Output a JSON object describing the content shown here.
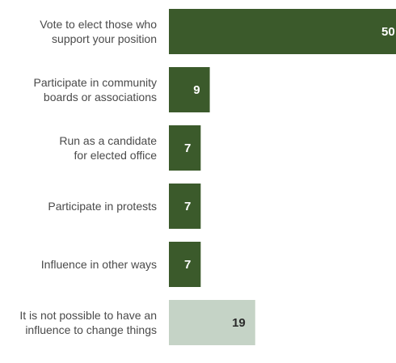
{
  "chart_data": {
    "type": "bar",
    "orientation": "horizontal",
    "categories": [
      [
        "Vote to elect those who",
        "support your position"
      ],
      [
        "Participate in community",
        "boards or associations"
      ],
      [
        "Run as a candidate",
        "for elected office"
      ],
      [
        "Participate in protests"
      ],
      [
        "Influence in other ways"
      ],
      [
        "It is not possible to have an",
        "influence to change things"
      ]
    ],
    "values": [
      50,
      9,
      7,
      7,
      7,
      19
    ],
    "bar_colors": [
      "#3b5a2b",
      "#3b5a2b",
      "#3b5a2b",
      "#3b5a2b",
      "#3b5a2b",
      "#c5d3c6"
    ],
    "label_colors": [
      "#ffffff",
      "#ffffff",
      "#ffffff",
      "#ffffff",
      "#ffffff",
      "#2b2b2b"
    ],
    "title": "",
    "xlabel": "",
    "ylabel": "",
    "xlim": [
      0,
      50
    ],
    "grid": false,
    "legend": "none"
  }
}
